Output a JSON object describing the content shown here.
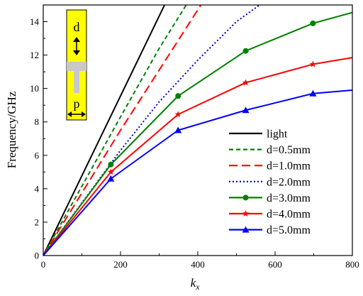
{
  "chart_data": {
    "type": "line",
    "xlabel": "k",
    "xlabel_sub": "x",
    "ylabel": "Frequency/GHz",
    "xlim": [
      0,
      800
    ],
    "ylim": [
      0,
      15
    ],
    "xticks": [
      0,
      200,
      400,
      600,
      800
    ],
    "yticks": [
      0,
      2,
      4,
      6,
      8,
      10,
      12,
      14
    ],
    "grid": false,
    "legend_position": "bottom-right",
    "series": [
      {
        "name": "light",
        "color": "#000000",
        "dash": "solid",
        "marker": "none",
        "x": [
          0,
          314
        ],
        "y": [
          0,
          15
        ]
      },
      {
        "name": "d=0.5mm",
        "color": "#008000",
        "dash": "short-dash",
        "marker": "none",
        "x": [
          0,
          100,
          200,
          300,
          370
        ],
        "y": [
          0,
          4.15,
          8.3,
          12.4,
          15
        ]
      },
      {
        "name": "d=1.0mm",
        "color": "#ff0000",
        "dash": "long-dash",
        "marker": "none",
        "x": [
          0,
          100,
          200,
          300,
          408
        ],
        "y": [
          0,
          3.75,
          7.5,
          11.1,
          15
        ]
      },
      {
        "name": "d=2.0mm",
        "color": "#0000cc",
        "dash": "dot",
        "marker": "none",
        "x": [
          0,
          100,
          200,
          300,
          400,
          500,
          560
        ],
        "y": [
          0,
          3.15,
          6.3,
          9.2,
          11.7,
          14.0,
          15
        ]
      },
      {
        "name": "d=3.0mm",
        "color": "#008000",
        "dash": "solid",
        "marker": "circle",
        "x": [
          0,
          175,
          349,
          524,
          698,
          800
        ],
        "y": [
          0,
          5.45,
          9.55,
          12.25,
          13.9,
          14.55
        ]
      },
      {
        "name": "d=4.0mm",
        "color": "#ff0000",
        "dash": "solid",
        "marker": "star",
        "x": [
          0,
          175,
          349,
          524,
          698,
          800
        ],
        "y": [
          0,
          5.0,
          8.45,
          10.35,
          11.45,
          11.85
        ]
      },
      {
        "name": "d=5.0mm",
        "color": "#0000ff",
        "dash": "solid",
        "marker": "triangle",
        "x": [
          0,
          175,
          349,
          524,
          698,
          800
        ],
        "y": [
          0,
          4.6,
          7.5,
          8.7,
          9.7,
          9.9
        ]
      }
    ],
    "inset": {
      "background": "#ffff00",
      "labels": {
        "d": "d",
        "p": "p"
      }
    }
  }
}
